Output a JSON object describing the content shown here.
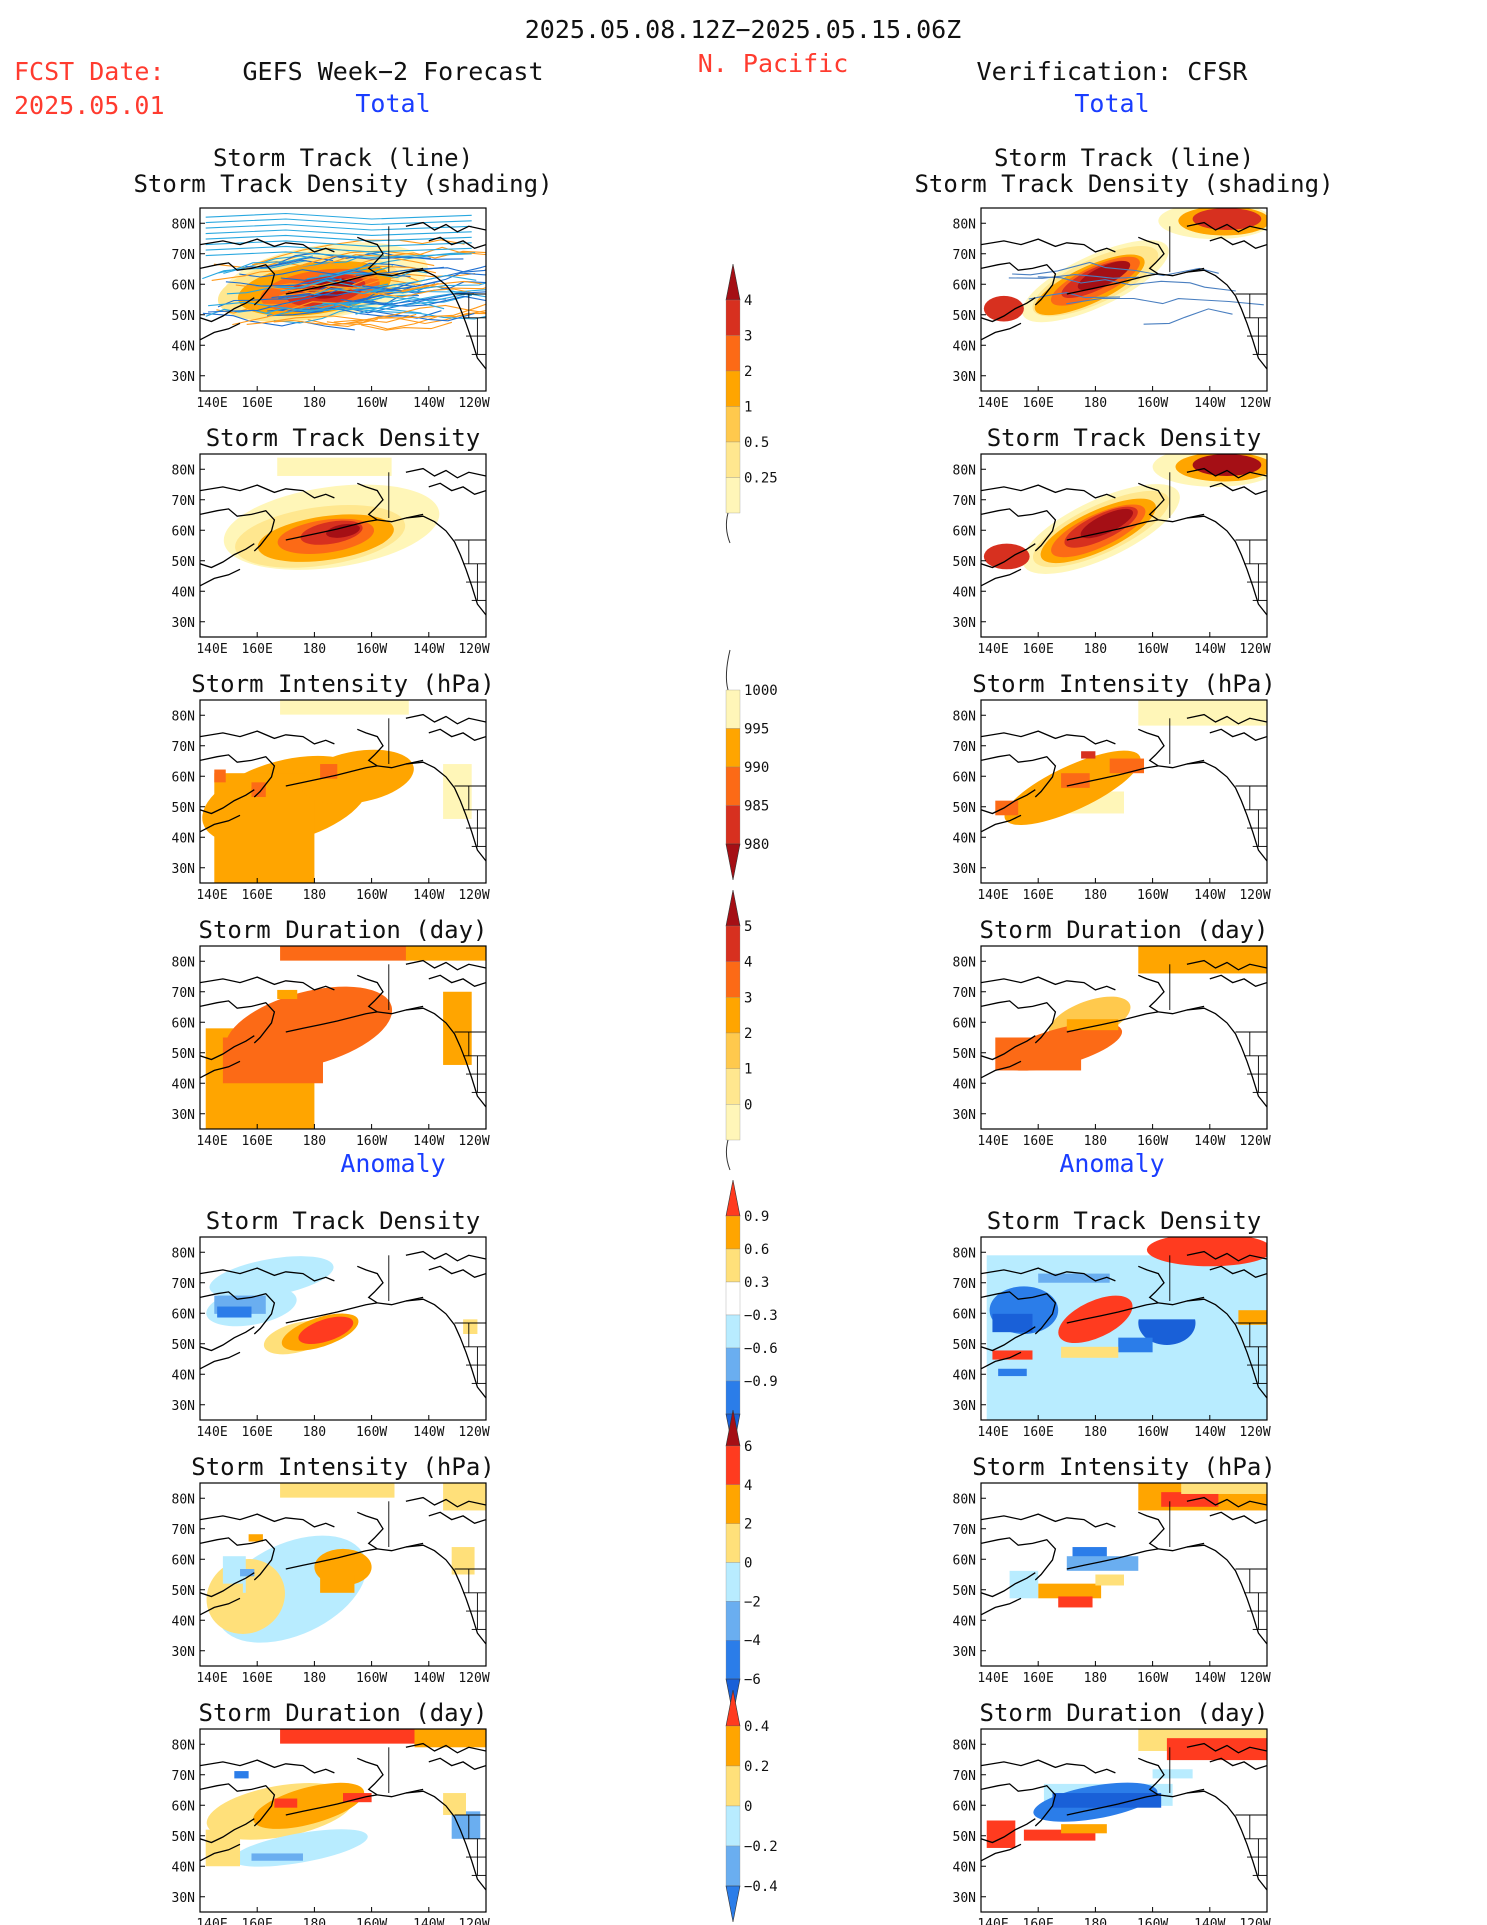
{
  "header": {
    "time_range": "2025.05.08.12Z−2025.05.15.06Z",
    "fcst_label": "FCST Date:",
    "fcst_date": "2025.05.01",
    "left_title": "GEFS Week−2 Forecast",
    "region": "N. Pacific",
    "right_title": "Verification: CFSR",
    "total_label": "Total",
    "anomaly_label": "Anomaly"
  },
  "map_axes": {
    "lon_ticks": [
      "140E",
      "160E",
      "180",
      "160W",
      "140W",
      "120W"
    ],
    "lat_ticks": [
      "80N",
      "70N",
      "60N",
      "50N",
      "40N",
      "30N"
    ]
  },
  "panels": {
    "total": [
      {
        "key": "track",
        "title_line1": "Storm Track (line)",
        "title_line2": "Storm Track Density (shading)"
      },
      {
        "key": "density",
        "title_line1": "Storm Track Density"
      },
      {
        "key": "intensity",
        "title_line1": "Storm Intensity (hPa)"
      },
      {
        "key": "duration",
        "title_line1": "Storm Duration (day)"
      }
    ],
    "anomaly": [
      {
        "key": "density_anom",
        "title_line1": "Storm Track Density"
      },
      {
        "key": "intensity_anom",
        "title_line1": "Storm Intensity (hPa)"
      },
      {
        "key": "duration_anom",
        "title_line1": "Storm Duration (day)"
      }
    ]
  },
  "colorbars": {
    "density": {
      "labels": [
        "4",
        "3",
        "2",
        "1",
        "0.5",
        "0.25"
      ],
      "colors": [
        "#a50f15",
        "#d7301f",
        "#fc6a16",
        "#ffa500",
        "#ffc94d",
        "#ffe78f",
        "#fff6b8"
      ]
    },
    "intensity": {
      "labels": [
        "1000",
        "995",
        "990",
        "985",
        "980"
      ],
      "colors": [
        "#fff6b8",
        "#ffa500",
        "#fc6a16",
        "#d7301f",
        "#a50f15"
      ]
    },
    "duration": {
      "labels": [
        "5",
        "4",
        "3",
        "2",
        "1",
        "0"
      ],
      "colors": [
        "#a50f15",
        "#d7301f",
        "#fc6a16",
        "#ffa500",
        "#ffc94d",
        "#ffe78f",
        "#fff6b8"
      ]
    },
    "density_anom": {
      "labels": [
        "0.9",
        "0.6",
        "0.3",
        "−0.3",
        "−0.6",
        "−0.9"
      ],
      "colors": [
        "#ff3b1f",
        "#ffa500",
        "#ffe07a",
        "#ffffff",
        "#b8ecff",
        "#6aaef0",
        "#2b7de9",
        "#1960d8"
      ]
    },
    "intensity_anom": {
      "labels": [
        "6",
        "4",
        "2",
        "0",
        "−2",
        "−4",
        "−6"
      ],
      "colors": [
        "#a50f15",
        "#ff3b1f",
        "#ffa500",
        "#ffe07a",
        "#b8ecff",
        "#6aaef0",
        "#2b7de9",
        "#1960d8"
      ]
    },
    "duration_anom": {
      "labels": [
        "0.4",
        "0.2",
        "0",
        "−0.2",
        "−0.4"
      ],
      "colors": [
        "#ff3b1f",
        "#ffa500",
        "#ffe07a",
        "#b8ecff",
        "#6aaef0",
        "#2b7de9"
      ]
    }
  },
  "colors": {
    "red_text": "#ff3b2f",
    "blue_text": "#1a3dff",
    "track_lines": [
      "#29a8e0",
      "#1f6fd1",
      "#ff9a1a"
    ]
  }
}
